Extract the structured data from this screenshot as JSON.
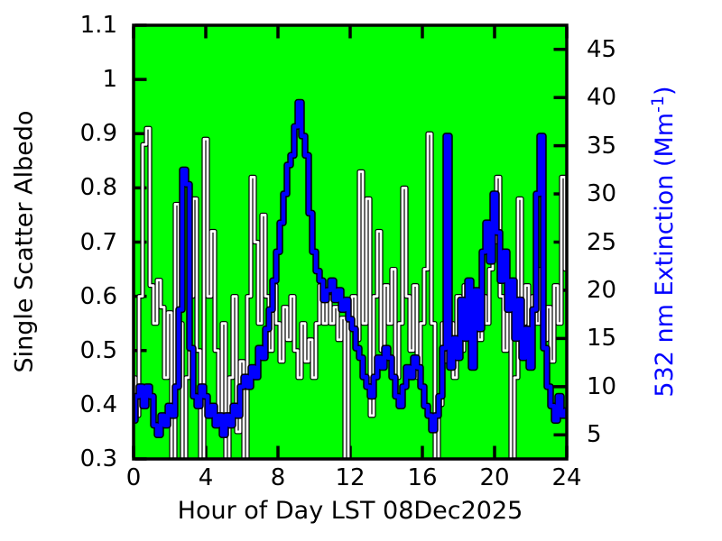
{
  "figure": {
    "canvas_bg": "#ffffff",
    "plot_bg": "#00ff00",
    "frame_color": "#000000"
  },
  "chart_data": {
    "type": "line",
    "title": "",
    "xlabel": "Hour of Day LST 08Dec2025",
    "ylabel_left": "Single Scatter Albedo",
    "ylabel_right_prefix": "532 nm Extinction (Mm",
    "ylabel_right_sup": "-1",
    "ylabel_right_suffix": ")",
    "grid": false,
    "legend": "none",
    "background": "#00ff00",
    "x_range": [
      0,
      24
    ],
    "x_major_ticks": [
      0,
      4,
      8,
      12,
      16,
      20,
      24
    ],
    "x_tick_labels": [
      "0",
      "4",
      "8",
      "12",
      "16",
      "20",
      "24"
    ],
    "y_left_range": [
      0.3,
      1.1
    ],
    "y_left_ticks": [
      0.3,
      0.4,
      0.5,
      0.6,
      0.7,
      0.8,
      0.9,
      1.0,
      1.1
    ],
    "y_left_tick_labels": [
      "0.3",
      "0.4",
      "0.5",
      "0.6",
      "0.7",
      "0.8",
      "0.9",
      "1",
      "1.1"
    ],
    "y_right_range": [
      2.5,
      47.5
    ],
    "y_right_ticks": [
      5,
      10,
      15,
      20,
      25,
      30,
      35,
      40,
      45
    ],
    "y_right_tick_labels": [
      "5",
      "10",
      "15",
      "20",
      "25",
      "30",
      "35",
      "40",
      "45"
    ],
    "x_start": 0,
    "x_step": 0.2,
    "series": [
      {
        "name": "Single Scatter Albedo",
        "axis": "left",
        "color": "#ffffff",
        "outline_color": "#000000",
        "values": [
          0.45,
          0.38,
          0.6,
          0.88,
          0.91,
          0.62,
          0.55,
          0.63,
          0.58,
          0.45,
          0.57,
          0.27,
          0.77,
          0.55,
          0.27,
          0.45,
          0.6,
          0.78,
          0.5,
          0.27,
          0.89,
          0.6,
          0.72,
          0.5,
          0.38,
          0.55,
          0.27,
          0.45,
          0.6,
          0.35,
          0.48,
          0.27,
          0.6,
          0.82,
          0.7,
          0.55,
          0.75,
          0.6,
          0.5,
          0.62,
          0.55,
          0.48,
          0.58,
          0.52,
          0.6,
          0.5,
          0.45,
          0.55,
          0.48,
          0.52,
          0.45,
          0.55,
          0.62,
          0.55,
          0.6,
          0.55,
          0.58,
          0.52,
          0.56,
          0.27,
          0.55,
          0.6,
          0.52,
          0.83,
          0.55,
          0.78,
          0.38,
          0.6,
          0.72,
          0.5,
          0.62,
          0.55,
          0.65,
          0.45,
          0.55,
          0.8,
          0.6,
          0.5,
          0.62,
          0.45,
          0.55,
          0.65,
          0.9,
          0.55,
          0.27,
          0.4,
          0.55,
          0.48,
          0.55,
          0.45,
          0.6,
          0.5,
          0.62,
          0.55,
          0.48,
          0.58,
          0.52,
          0.6,
          0.55,
          0.65,
          0.7,
          0.82,
          0.6,
          0.5,
          0.62,
          0.27,
          0.45,
          0.78,
          0.55,
          0.62,
          0.48,
          0.6,
          0.55,
          0.65,
          0.52,
          0.58,
          0.48,
          0.62,
          0.55,
          0.82,
          0.65
        ]
      },
      {
        "name": "532 nm Extinction (Mm^-1)",
        "axis": "right",
        "color": "#0000ff",
        "outline_color": "#000000",
        "values": [
          6.5,
          9,
          10,
          8,
          10,
          9,
          6,
          5,
          7,
          6,
          8,
          7,
          10,
          18,
          32.5,
          31,
          14,
          9,
          8,
          10,
          9,
          7,
          8,
          6,
          7,
          5,
          7,
          6,
          8,
          7,
          10,
          11,
          10,
          12,
          11,
          14,
          13,
          16,
          18,
          21,
          24,
          27,
          30,
          33,
          34,
          37,
          39.5,
          36,
          34,
          28,
          24,
          22,
          21,
          19,
          20,
          21,
          19,
          20,
          18,
          19,
          17,
          16,
          14,
          13,
          11,
          10,
          9,
          11,
          13,
          12,
          14,
          13,
          11,
          9,
          8,
          10,
          12,
          11,
          13,
          12,
          10,
          8,
          7,
          5.5,
          7,
          9,
          14,
          36,
          12,
          15,
          13,
          19,
          15,
          21,
          12,
          20,
          16,
          24,
          27,
          23,
          30,
          26,
          21,
          24,
          18,
          21,
          15,
          19,
          13,
          16,
          12,
          18,
          30,
          36,
          14,
          10,
          8,
          6.5,
          9,
          7,
          7.5
        ]
      }
    ]
  }
}
